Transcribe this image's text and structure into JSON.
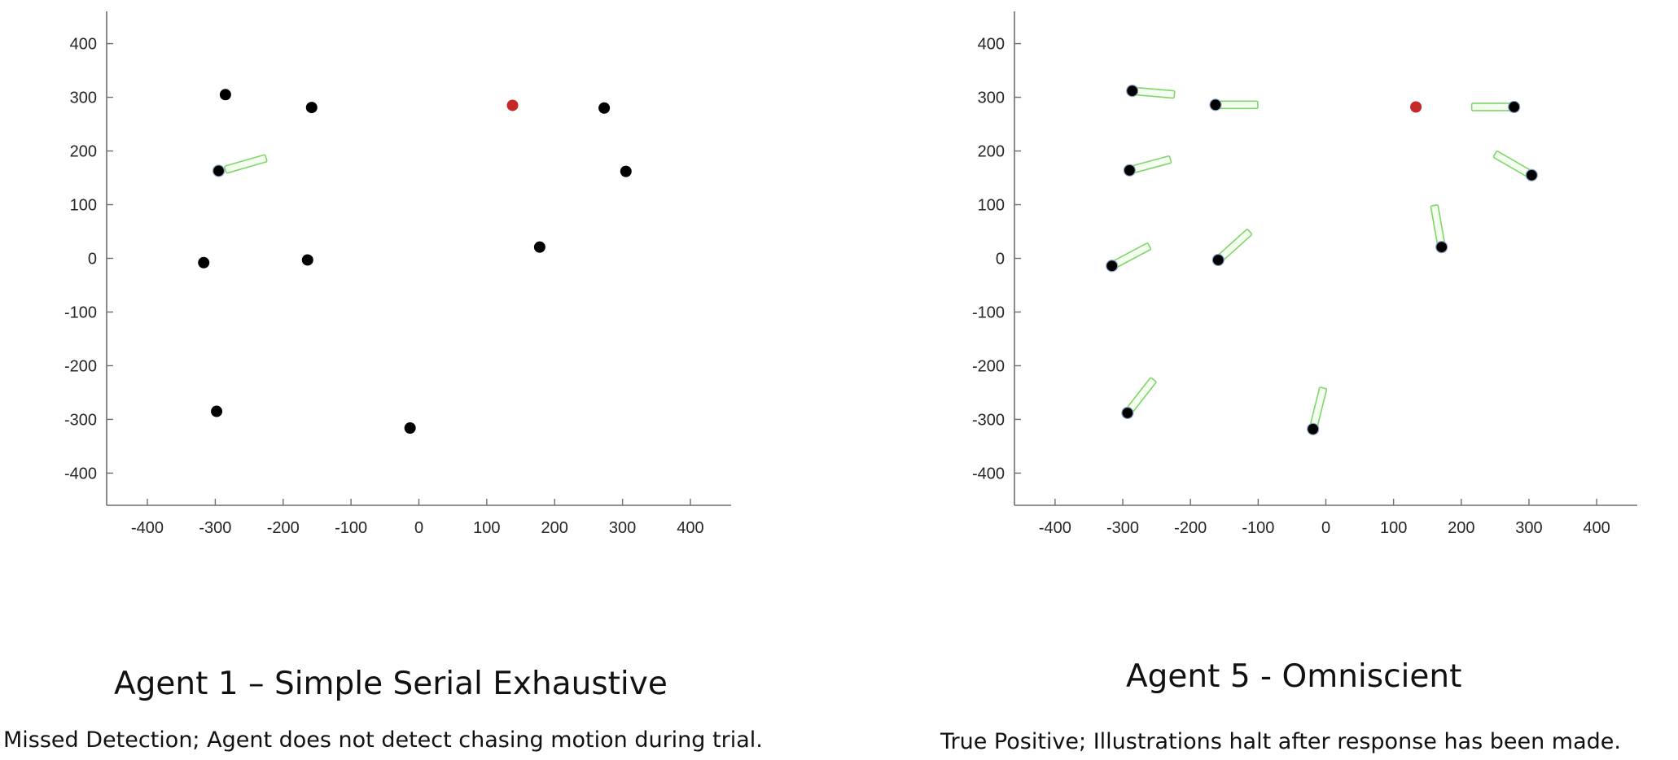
{
  "chart_data": [
    {
      "type": "scatter",
      "title": "Agent 1 – Simple Serial Exhaustive",
      "subtitle": "Missed Detection; Agent does not detect chasing motion during trial.",
      "xlim": [
        -460,
        460
      ],
      "ylim": [
        -460,
        460
      ],
      "xticks": [
        -400,
        -300,
        -200,
        -100,
        0,
        100,
        200,
        300,
        400
      ],
      "yticks": [
        400,
        300,
        200,
        100,
        0,
        -100,
        -200,
        -300,
        -400
      ],
      "grid": false,
      "points": [
        {
          "x": -285,
          "y": 305,
          "color": "#000000"
        },
        {
          "x": -158,
          "y": 281,
          "color": "#000000"
        },
        {
          "x": 138,
          "y": 285,
          "color": "#c62828"
        },
        {
          "x": 273,
          "y": 280,
          "color": "#000000"
        },
        {
          "x": -295,
          "y": 163,
          "color": "#000000"
        },
        {
          "x": 305,
          "y": 162,
          "color": "#000000"
        },
        {
          "x": -317,
          "y": -8,
          "color": "#000000"
        },
        {
          "x": -164,
          "y": -3,
          "color": "#000000"
        },
        {
          "x": 178,
          "y": 21,
          "color": "#000000"
        },
        {
          "x": -298,
          "y": -285,
          "color": "#000000"
        },
        {
          "x": -13,
          "y": -316,
          "color": "#000000"
        }
      ],
      "sensors": [
        {
          "x": -285,
          "y": 165,
          "angle_deg": 16
        }
      ]
    },
    {
      "type": "scatter",
      "title": "Agent 5 - Omniscient",
      "subtitle": "True Positive; Illustrations halt after response has been made.",
      "xlim": [
        -460,
        460
      ],
      "ylim": [
        -460,
        460
      ],
      "xticks": [
        -400,
        -300,
        -200,
        -100,
        0,
        100,
        200,
        300,
        400
      ],
      "yticks": [
        400,
        300,
        200,
        100,
        0,
        -100,
        -200,
        -300,
        -400
      ],
      "grid": false,
      "points": [
        {
          "x": -286,
          "y": 312,
          "color": "#000000"
        },
        {
          "x": -163,
          "y": 286,
          "color": "#000000"
        },
        {
          "x": 133,
          "y": 282,
          "color": "#c62828"
        },
        {
          "x": 278,
          "y": 282,
          "color": "#000000"
        },
        {
          "x": -290,
          "y": 164,
          "color": "#000000"
        },
        {
          "x": 304,
          "y": 155,
          "color": "#000000"
        },
        {
          "x": -316,
          "y": -14,
          "color": "#000000"
        },
        {
          "x": -159,
          "y": -3,
          "color": "#000000"
        },
        {
          "x": 171,
          "y": 21,
          "color": "#000000"
        },
        {
          "x": -293,
          "y": -288,
          "color": "#000000"
        },
        {
          "x": -19,
          "y": -318,
          "color": "#000000"
        }
      ],
      "sensors": [
        {
          "x": -286,
          "y": 312,
          "angle_deg": -5
        },
        {
          "x": -163,
          "y": 286,
          "angle_deg": 0
        },
        {
          "x": 278,
          "y": 282,
          "angle_deg": 180
        },
        {
          "x": -290,
          "y": 164,
          "angle_deg": 15
        },
        {
          "x": 304,
          "y": 155,
          "angle_deg": 150
        },
        {
          "x": -316,
          "y": -14,
          "angle_deg": 28
        },
        {
          "x": -159,
          "y": -3,
          "angle_deg": 42
        },
        {
          "x": 171,
          "y": 21,
          "angle_deg": 100
        },
        {
          "x": -293,
          "y": -288,
          "angle_deg": 52
        },
        {
          "x": -19,
          "y": -318,
          "angle_deg": 76
        }
      ]
    }
  ]
}
